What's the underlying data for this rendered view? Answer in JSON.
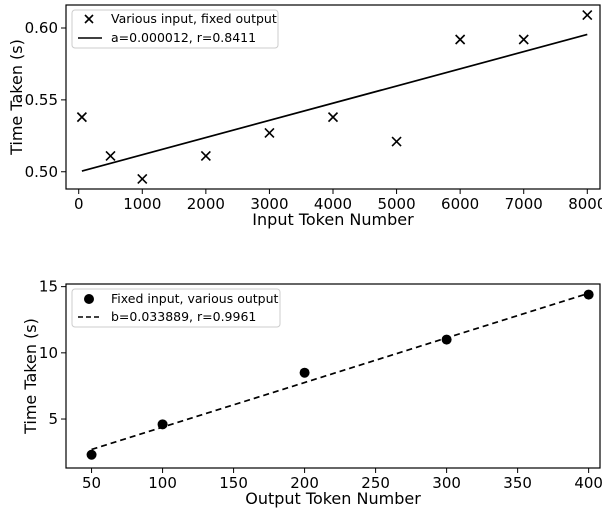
{
  "chart_data": [
    {
      "type": "scatter",
      "xlabel": "Input Token Number",
      "ylabel": "Time Taken (s)",
      "xlim": [
        -200,
        8200
      ],
      "ylim": [
        0.488,
        0.616
      ],
      "xticks": [
        0,
        1000,
        2000,
        3000,
        4000,
        5000,
        6000,
        7000,
        8000
      ],
      "yticks": [
        0.5,
        0.55,
        0.6
      ],
      "ytick_labels": [
        "0.50",
        "0.55",
        "0.60"
      ],
      "legend_position": "top-left",
      "series": [
        {
          "name": "Various input, fixed output",
          "marker": "x",
          "x": [
            50,
            500,
            1000,
            2000,
            3000,
            4000,
            5000,
            6000,
            7000,
            8000
          ],
          "y": [
            0.538,
            0.511,
            0.495,
            0.511,
            0.527,
            0.538,
            0.521,
            0.592,
            0.592,
            0.609
          ]
        },
        {
          "name": "a=0.000012, r=0.8411",
          "kind": "fit-line",
          "style": "solid",
          "x": [
            50,
            8000
          ],
          "y": [
            0.5005,
            0.5955
          ]
        }
      ]
    },
    {
      "type": "scatter",
      "xlabel": "Output Token Number",
      "ylabel": "Time Taken (s)",
      "xlim": [
        32,
        408
      ],
      "ylim": [
        1.3,
        15.2
      ],
      "xticks": [
        50,
        100,
        150,
        200,
        250,
        300,
        350,
        400
      ],
      "yticks": [
        5,
        10,
        15
      ],
      "ytick_labels": [
        "5",
        "10",
        "15"
      ],
      "legend_position": "top-left",
      "series": [
        {
          "name": "Fixed input, various output",
          "marker": "o",
          "x": [
            50,
            100,
            200,
            300,
            400
          ],
          "y": [
            2.3,
            4.6,
            8.5,
            11.0,
            14.4
          ]
        },
        {
          "name": "b=0.033889, r=0.9961",
          "kind": "fit-line",
          "style": "dashed",
          "x": [
            50,
            400
          ],
          "y": [
            2.7,
            14.5
          ]
        }
      ]
    }
  ]
}
